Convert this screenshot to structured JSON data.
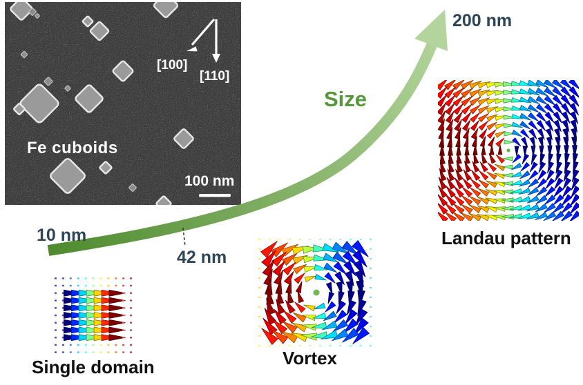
{
  "sem_panel": {
    "title": "Fe cuboids",
    "direction_label_1": "[100]",
    "direction_label_2": "[110]",
    "scale_bar_label": "100 nm",
    "background_color": "#3d3d3d",
    "particle_fill": "#9a9a9a",
    "particle_rim": "#e8e8e8",
    "particles": [
      [
        24,
        10,
        24
      ],
      [
        40,
        14,
        8
      ],
      [
        47,
        20,
        5
      ],
      [
        233,
        5,
        26
      ],
      [
        120,
        28,
        11
      ],
      [
        137,
        42,
        20
      ],
      [
        28,
        76,
        7
      ],
      [
        171,
        100,
        22
      ],
      [
        63,
        115,
        9
      ],
      [
        91,
        125,
        6
      ],
      [
        50,
        147,
        42
      ],
      [
        21,
        155,
        12
      ],
      [
        122,
        140,
        30
      ],
      [
        259,
        198,
        21
      ],
      [
        146,
        240,
        13
      ],
      [
        185,
        269,
        8
      ],
      [
        91,
        252,
        38
      ],
      [
        230,
        292,
        16
      ]
    ]
  },
  "size_axis": {
    "label": "Size",
    "label_color": "#55983a",
    "tick_color": "#2e4558",
    "gradient_start": "#4e8a2d",
    "gradient_end": "#b3d49c",
    "ticks": [
      {
        "label": "10 nm"
      },
      {
        "label": "42 nm"
      },
      {
        "label": "200 nm"
      }
    ]
  },
  "states": [
    {
      "label": "Single domain",
      "pattern": "uniform",
      "cols": 11,
      "rows": 11,
      "colormap": "jet"
    },
    {
      "label": "Vortex",
      "pattern": "vortex",
      "cols": 12,
      "rows": 12,
      "colormap": "jet",
      "core_color": "#72b755"
    },
    {
      "label": "Landau pattern",
      "pattern": "landau",
      "cols": 17,
      "rows": 17,
      "colormap": "jet",
      "core_color": "#6ab04c"
    }
  ]
}
